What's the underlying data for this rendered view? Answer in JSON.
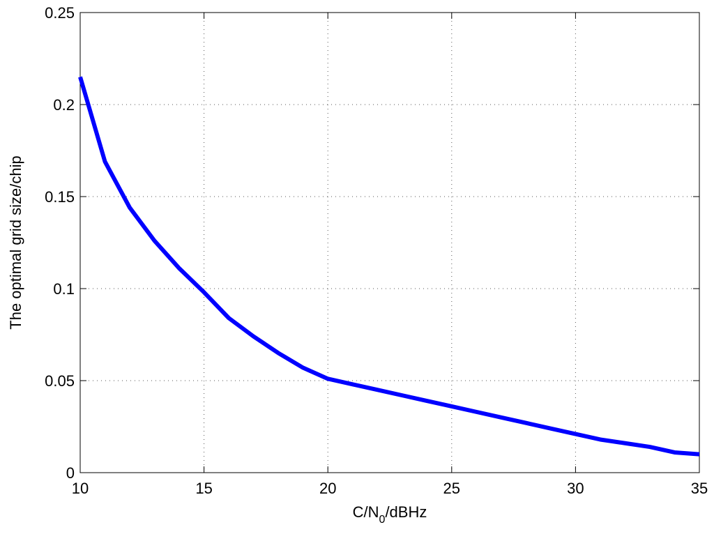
{
  "chart_data": {
    "type": "line",
    "xlabel": [
      "C/N",
      "0",
      "/dBHz"
    ],
    "ylabel": "The optimal grid size/chip",
    "x": [
      10,
      11,
      12,
      13,
      14,
      15,
      16,
      17,
      18,
      19,
      20,
      21,
      22,
      23,
      24,
      25,
      26,
      27,
      28,
      29,
      30,
      31,
      32,
      33,
      34,
      35
    ],
    "series": [
      {
        "color": "#0000ff",
        "values": [
          0.215,
          0.169,
          0.144,
          0.126,
          0.111,
          0.098,
          0.084,
          0.074,
          0.065,
          0.057,
          0.051,
          0.048,
          0.045,
          0.042,
          0.039,
          0.036,
          0.033,
          0.03,
          0.027,
          0.024,
          0.021,
          0.018,
          0.016,
          0.014,
          0.011,
          0.01
        ]
      }
    ],
    "xlim": [
      10,
      35
    ],
    "xticks": [
      10,
      15,
      20,
      25,
      30,
      35
    ],
    "ylim": [
      0,
      0.25
    ],
    "yticks": [
      0,
      0.05,
      0.1,
      0.15,
      0.2,
      0.25
    ],
    "grid": true
  }
}
